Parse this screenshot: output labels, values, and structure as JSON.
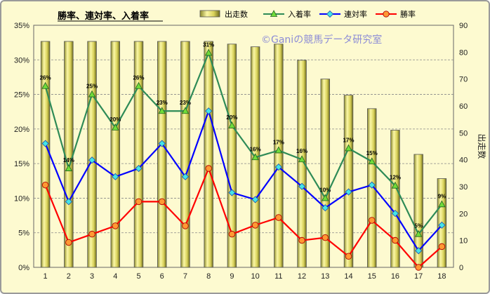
{
  "title": "勝率、連対率、入着率",
  "watermark": "©Ganiの競馬データ研究室",
  "chart_data": {
    "type": "bar+line",
    "title": "勝率、連対率、入着率",
    "categories": [
      "1",
      "2",
      "3",
      "4",
      "5",
      "6",
      "7",
      "8",
      "9",
      "10",
      "11",
      "12",
      "13",
      "14",
      "15",
      "16",
      "17",
      "18"
    ],
    "ylim_left": [
      0,
      35
    ],
    "ylim_right": [
      0,
      90
    ],
    "left_ticks": [
      "0%",
      "5%",
      "10%",
      "15%",
      "20%",
      "25%",
      "30%",
      "35%"
    ],
    "right_ticks": [
      "0",
      "10",
      "20",
      "30",
      "40",
      "50",
      "60",
      "70",
      "80",
      "90"
    ],
    "ylabel_right": "出走数",
    "legend_position": "top",
    "grid": true,
    "series": [
      {
        "name": "出走数",
        "type": "bar",
        "axis": "right",
        "color": "#e8e27a",
        "values": [
          84,
          84,
          84,
          84,
          84,
          84,
          84,
          84,
          83,
          82,
          83,
          77,
          70,
          64,
          59,
          51,
          42,
          33
        ]
      },
      {
        "name": "入着率",
        "type": "line",
        "axis": "left",
        "color": "#2e8b57",
        "marker": "triangle",
        "values": [
          26.2,
          14.3,
          25.0,
          20.2,
          26.2,
          22.6,
          22.6,
          31.0,
          20.5,
          15.9,
          16.9,
          15.6,
          10.0,
          17.2,
          15.3,
          11.8,
          4.8,
          9.1
        ],
        "labels": [
          "26%",
          "14%",
          "25%",
          "20%",
          "26%",
          "23%",
          "23%",
          "31%",
          "20%",
          "16%",
          "17%",
          "16%",
          "10%",
          "17%",
          "15%",
          "12%",
          "5%",
          "9%"
        ]
      },
      {
        "name": "連対率",
        "type": "line",
        "axis": "left",
        "color": "#0000ff",
        "marker": "diamond",
        "values": [
          17.9,
          9.5,
          15.5,
          13.1,
          14.3,
          17.9,
          13.1,
          22.6,
          10.8,
          9.8,
          14.5,
          11.7,
          8.6,
          10.9,
          11.9,
          7.8,
          2.4,
          6.1
        ]
      },
      {
        "name": "勝率",
        "type": "line",
        "axis": "left",
        "color": "#ff0000",
        "marker": "circle",
        "values": [
          11.9,
          3.6,
          4.8,
          6.0,
          9.5,
          9.5,
          6.0,
          14.3,
          4.8,
          6.1,
          7.2,
          3.9,
          4.3,
          1.6,
          6.8,
          3.9,
          0.0,
          3.0
        ]
      }
    ]
  },
  "colors": {
    "bg": "#fdfad0",
    "grid": "#888888",
    "bar_fill": "#e8e27a",
    "bar_stroke": "#555555"
  }
}
